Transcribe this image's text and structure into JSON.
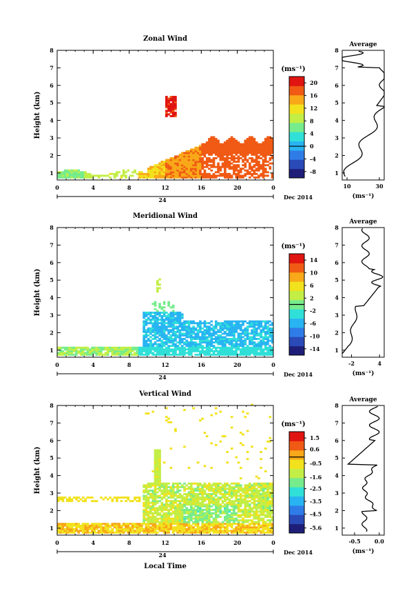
{
  "chart_data": [
    {
      "type": "heatmap",
      "title": "Zonal Wind",
      "ylabel": "Height (km)",
      "xticks": [
        "0",
        "4",
        "8",
        "12",
        "16",
        "20",
        "0"
      ],
      "yticks": [
        "1",
        "2",
        "3",
        "4",
        "5",
        "6",
        "7",
        "8"
      ],
      "xlim": [
        0,
        24
      ],
      "ylim": [
        0.6,
        8.0
      ],
      "date_day": "24",
      "date_label": "Dec 2014",
      "colorbar": {
        "unit": "(ms⁻¹)",
        "ticks": [
          "20",
          "16",
          "12",
          "8",
          "4",
          "0",
          "-4",
          "-8"
        ],
        "min": -10,
        "max": 22
      },
      "average": {
        "title": "Average",
        "xticks": [
          "10",
          "30"
        ],
        "xlabel": "(ms⁻¹)",
        "xlim": [
          7,
          33
        ]
      },
      "color_scale": [
        "#1e1e78",
        "#2a4ab8",
        "#2f7ce8",
        "#28b4f2",
        "#30e0d8",
        "#76ec8c",
        "#c2ee46",
        "#f2e21e",
        "#f8a818",
        "#f05a14",
        "#e01410"
      ]
    },
    {
      "type": "heatmap",
      "title": "Meridional Wind",
      "ylabel": "Height (km)",
      "xticks": [
        "0",
        "4",
        "8",
        "12",
        "16",
        "20",
        "0"
      ],
      "yticks": [
        "1",
        "2",
        "3",
        "4",
        "5",
        "6",
        "7",
        "8"
      ],
      "xlim": [
        0,
        24
      ],
      "ylim": [
        0.6,
        8.0
      ],
      "date_day": "24",
      "date_label": "Dec 2014",
      "colorbar": {
        "unit": "(ms⁻¹)",
        "ticks": [
          "14",
          "10",
          "6",
          "2",
          "-2",
          "-6",
          "-10",
          "-14"
        ],
        "min": -16,
        "max": 16
      },
      "average": {
        "title": "Average",
        "xticks": [
          "-2",
          "4"
        ],
        "xlabel": "(ms⁻¹)",
        "xlim": [
          -4,
          5
        ]
      }
    },
    {
      "type": "heatmap",
      "title": "Vertical Wind",
      "ylabel": "Height (km)",
      "xlabel": "Local Time",
      "xticks": [
        "0",
        "4",
        "8",
        "12",
        "16",
        "20",
        "0"
      ],
      "yticks": [
        "1",
        "2",
        "3",
        "4",
        "5",
        "6",
        "7",
        "8"
      ],
      "xlim": [
        0,
        24
      ],
      "ylim": [
        0.6,
        8.0
      ],
      "date_day": "24",
      "date_label": "Dec 2014",
      "colorbar": {
        "unit": "(ms⁻¹)",
        "ticks": [
          "1.5",
          "0.6",
          "-0.5",
          "-1.6",
          "-2.5",
          "-3.5",
          "-4.5",
          "-5.6"
        ],
        "min": -6.0,
        "max": 2.0
      },
      "average": {
        "title": "Average",
        "xticks": [
          "-0.5",
          "0.0"
        ],
        "xlabel": "(ms⁻¹)",
        "xlim": [
          -0.75,
          0.1
        ]
      }
    }
  ]
}
